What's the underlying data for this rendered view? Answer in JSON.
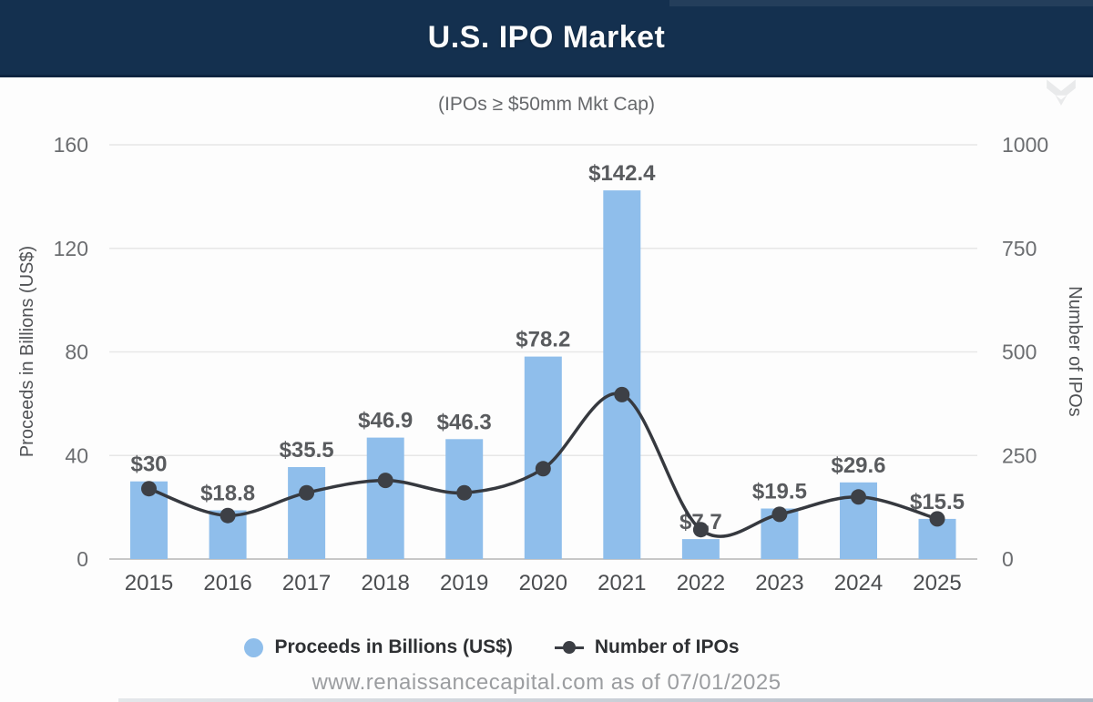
{
  "header": {
    "title": "U.S. IPO Market",
    "bg_color": "#14304f",
    "text_color": "#fbfcfd"
  },
  "subtitle": "(IPOs ≥ $50mm Mkt Cap)",
  "chart_data": {
    "type": "bar+line combo",
    "categories": [
      "2015",
      "2016",
      "2017",
      "2018",
      "2019",
      "2020",
      "2021",
      "2022",
      "2023",
      "2024",
      "2025"
    ],
    "series": [
      {
        "name": "Proceeds in Billions (US$)",
        "type": "bar",
        "axis": "left",
        "values": [
          30,
          18.8,
          35.5,
          46.9,
          46.3,
          78.2,
          142.4,
          7.7,
          19.5,
          29.6,
          15.5
        ],
        "data_labels": [
          "$30",
          "$18.8",
          "$35.5",
          "$46.9",
          "$46.3",
          "$78.2",
          "$142.4",
          "$7.7",
          "$19.5",
          "$29.6",
          "$15.5"
        ],
        "color": "#8fbeeb"
      },
      {
        "name": "Number of IPOs",
        "type": "line",
        "axis": "right",
        "values": [
          170,
          105,
          160,
          190,
          160,
          218,
          397,
          71,
          108,
          150,
          97
        ],
        "values_note": "estimated from gridlines; not labeled on chart",
        "color": "#3b3e44"
      }
    ],
    "left_axis": {
      "label": "Proceeds in Billions (US$)",
      "ticks": [
        0,
        40,
        80,
        120,
        160
      ],
      "range": [
        0,
        160
      ]
    },
    "right_axis": {
      "label": "Number of IPOs",
      "ticks": [
        0,
        250,
        500,
        750,
        1000
      ],
      "range": [
        0,
        1000
      ]
    },
    "grid": true,
    "legend_position": "bottom"
  },
  "legend": {
    "items": [
      {
        "label": "Proceeds in Billions (US$)",
        "marker": "circle",
        "color": "#8fbeeb"
      },
      {
        "label": "Number of IPOs",
        "marker": "line-dot",
        "color": "#3b3e44"
      }
    ]
  },
  "footer": {
    "source": "www.renaissancecapital.com as of 07/01/2025"
  },
  "colors": {
    "bar_fill": "#8fbeeb",
    "line_stroke": "#36393f",
    "dot_fill": "#3d4046",
    "gridline": "#e7e7e7",
    "baseline": "#c7c7c7",
    "tick_label": "#6b6d70",
    "value_label": "#595b5e",
    "year_label": "#4b4d50",
    "axis_title": "#515356"
  }
}
